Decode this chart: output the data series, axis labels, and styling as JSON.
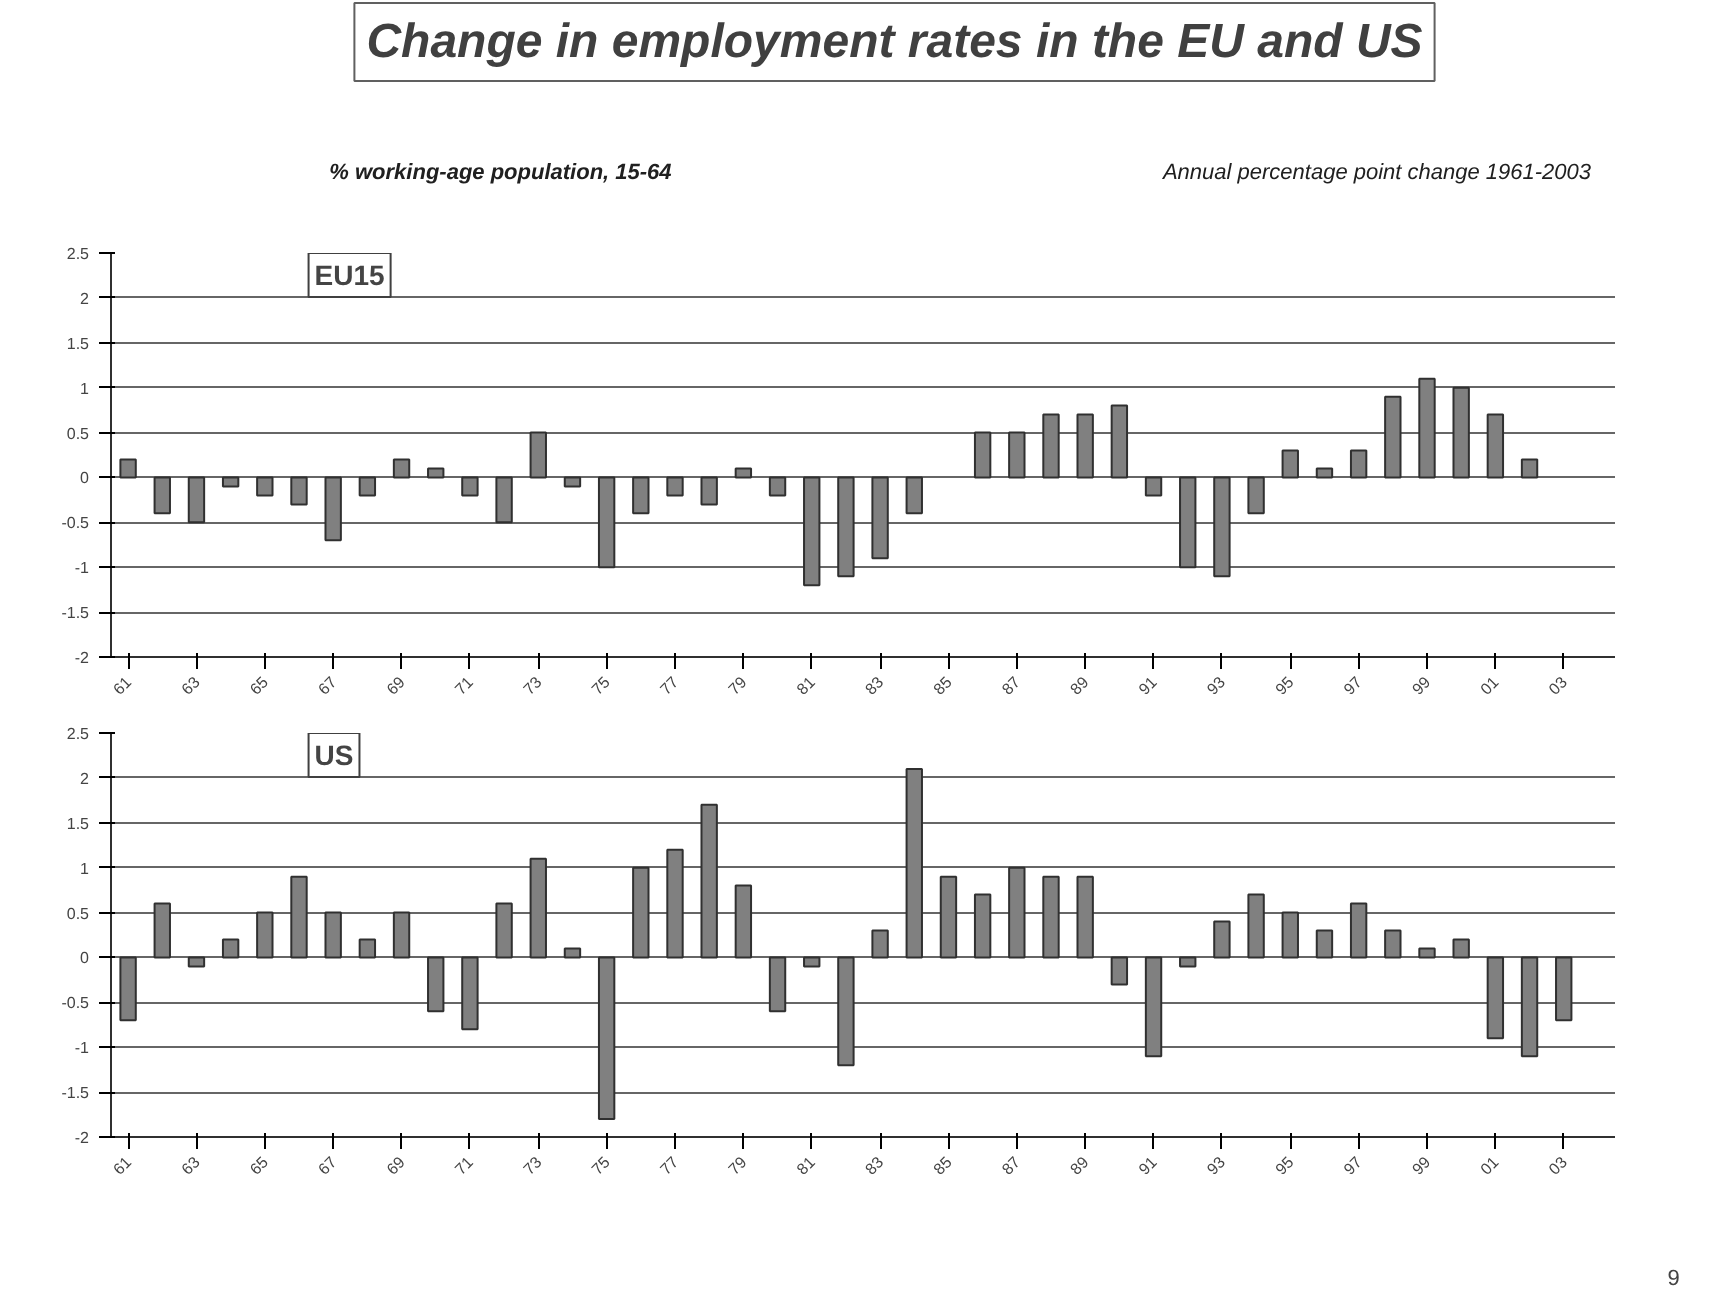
{
  "chart_data": [
    {
      "type": "other",
      "title": "Change in employment rates in the EU and US",
      "subtitle": "% working-age population, 15-64",
      "annotations": [
        "Annual percentage point change 1961-2003",
        "9"
      ]
    },
    {
      "type": "bar",
      "title": "EU15",
      "categories": [
        "61",
        null,
        "63",
        null,
        "65",
        null,
        "67",
        null,
        "69",
        null,
        "71",
        null,
        "73",
        null,
        "75",
        null,
        "77",
        null,
        "79",
        null,
        "81",
        null,
        "83",
        null,
        "85",
        null,
        "87",
        null,
        "89",
        null,
        "91",
        null,
        "93",
        null,
        "95",
        null,
        "97",
        null,
        "99",
        null,
        "01",
        null,
        "03",
        null
      ],
      "values": [
        0.2,
        -0.4,
        -0.5,
        -0.1,
        -0.2,
        -0.3,
        -0.7,
        -0.2,
        0.2,
        0.1,
        -0.2,
        -0.5,
        0.5,
        -0.1,
        -1.0,
        -0.4,
        -0.2,
        -0.3,
        0.1,
        -0.2,
        -1.2,
        -1.1,
        -0.9,
        -0.4,
        null,
        0.5,
        0.5,
        0.7,
        0.7,
        0.8,
        -0.2,
        -1.0,
        -1.1,
        -0.4,
        0.3,
        0.1,
        0.3,
        0.9,
        1.1,
        1.0,
        0.7,
        0.2,
        null,
        null
      ],
      "color": "#808080",
      "ylim": [
        -2,
        2.5
      ],
      "yticks": [
        -2,
        -1.5,
        -1,
        -0.5,
        0,
        0.5,
        1,
        1.5,
        2,
        2.5
      ],
      "grid": "y"
    },
    {
      "type": "bar",
      "title": "US",
      "categories": [
        "61",
        null,
        "63",
        null,
        "65",
        null,
        "67",
        null,
        "69",
        null,
        "71",
        null,
        "73",
        null,
        "75",
        null,
        "77",
        null,
        "79",
        null,
        "81",
        null,
        "83",
        null,
        "85",
        null,
        "87",
        null,
        "89",
        null,
        "91",
        null,
        "93",
        null,
        "95",
        null,
        "97",
        null,
        "99",
        null,
        "01",
        null,
        "03",
        null
      ],
      "values": [
        -0.7,
        0.6,
        -0.1,
        0.2,
        0.5,
        0.9,
        0.5,
        0.2,
        0.5,
        -0.6,
        -0.8,
        0.6,
        1.1,
        0.1,
        -1.8,
        1.0,
        1.2,
        1.7,
        0.8,
        -0.6,
        -0.1,
        -1.2,
        0.3,
        2.1,
        0.9,
        0.7,
        1.0,
        0.9,
        0.9,
        -0.3,
        -1.1,
        -0.1,
        0.4,
        0.7,
        0.5,
        0.3,
        0.6,
        0.3,
        0.1,
        0.2,
        -0.9,
        -1.1,
        -0.7,
        null
      ],
      "color": "#808080",
      "ylim": [
        -2,
        2.5
      ],
      "yticks": [
        -2,
        -1.5,
        -1,
        -0.5,
        0,
        0.5,
        1,
        1.5,
        2,
        2.5
      ],
      "grid": "y"
    }
  ]
}
